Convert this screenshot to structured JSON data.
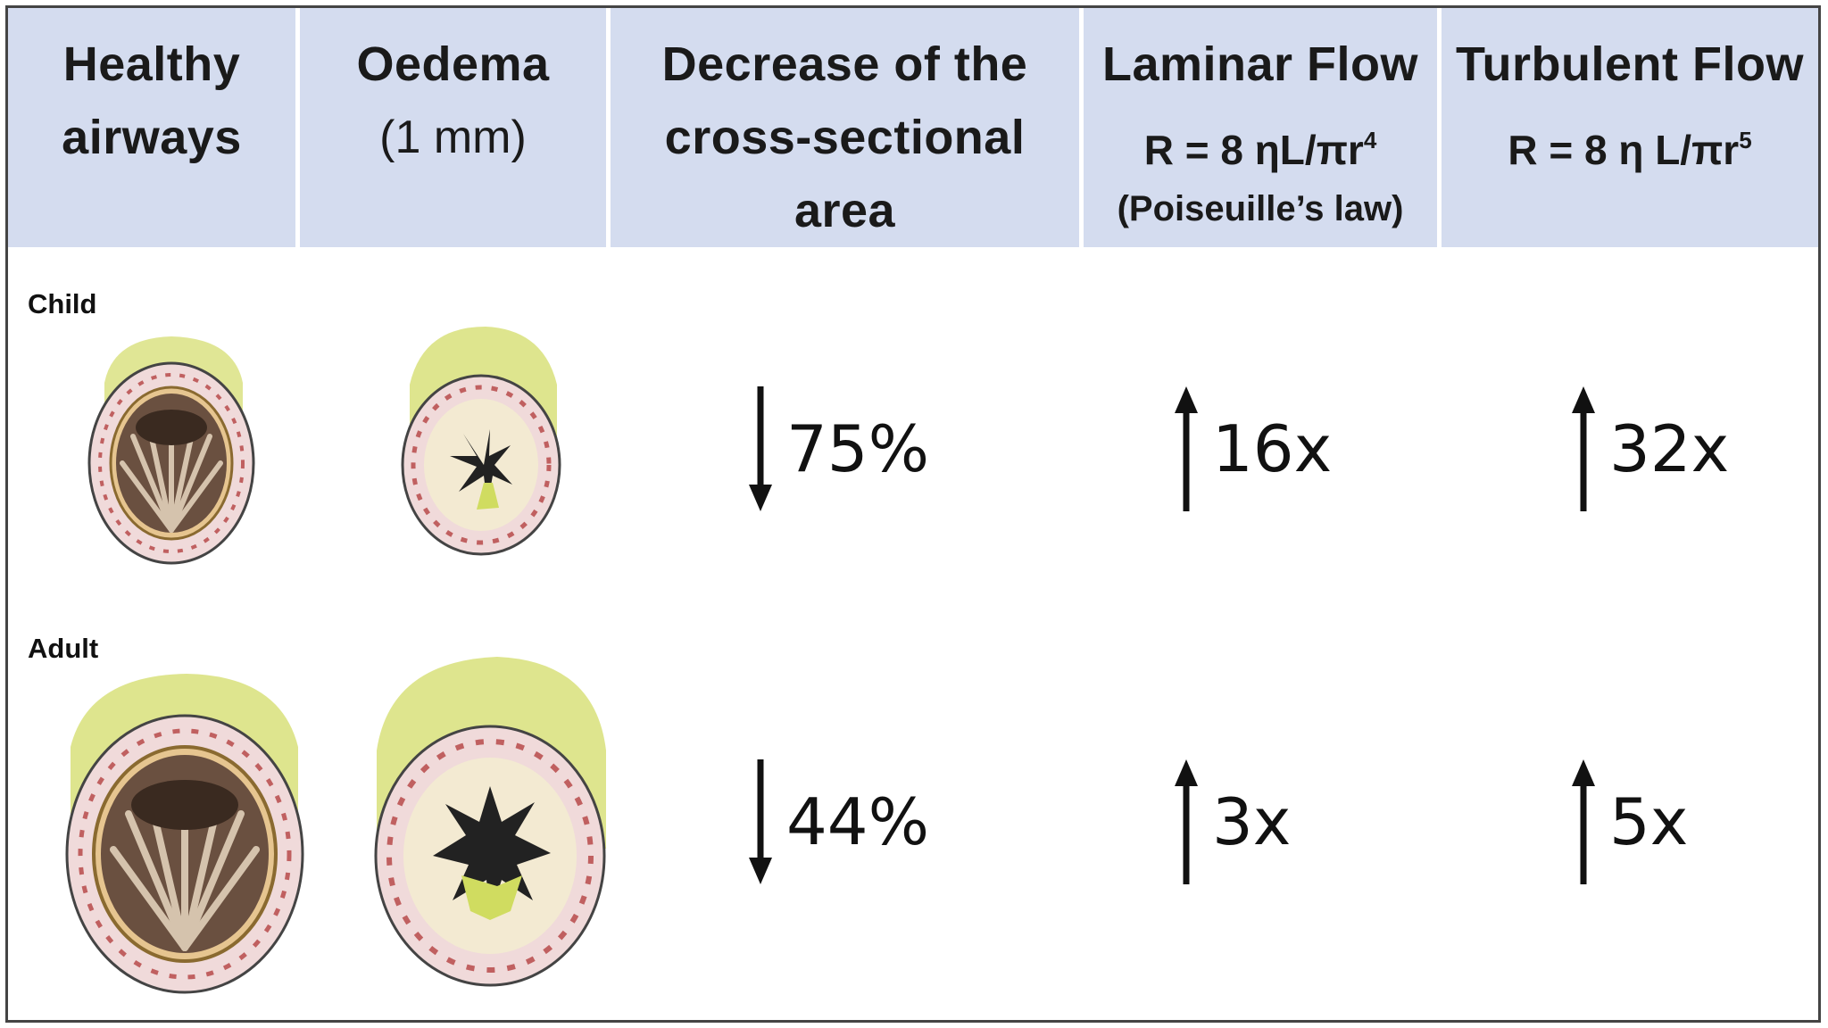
{
  "header": {
    "col1_line1": "Healthy",
    "col1_line2": "airways",
    "col2_line1": "Oedema",
    "col2_line2": "(1 mm)",
    "col3_line1": "Decrease of the",
    "col3_line2": "cross-sectional area",
    "col4_title": "Laminar Flow",
    "col4_formula_base": "R = 8 ηL/πr",
    "col4_formula_exp": "4",
    "col4_law": "(Poiseuille’s law)",
    "col5_title": "Turbulent Flow",
    "col5_formula_base": "R = 8 η L/πr",
    "col5_formula_exp": "5"
  },
  "rows": [
    {
      "label": "Child",
      "decrease": "75%",
      "laminar": "16x",
      "turbulent": "32x"
    },
    {
      "label": "Adult",
      "decrease": "44%",
      "laminar": "3x",
      "turbulent": "5x"
    }
  ],
  "arrows": {
    "decrease": "down",
    "laminar": "up",
    "turbulent": "up"
  },
  "colors": {
    "header_bg": "#d4dcef",
    "airway_outer": "#d8e07a",
    "airway_wall": "#e8b8b8",
    "airway_lumen": "#6a5040",
    "oedema_fill": "#b8c840"
  }
}
